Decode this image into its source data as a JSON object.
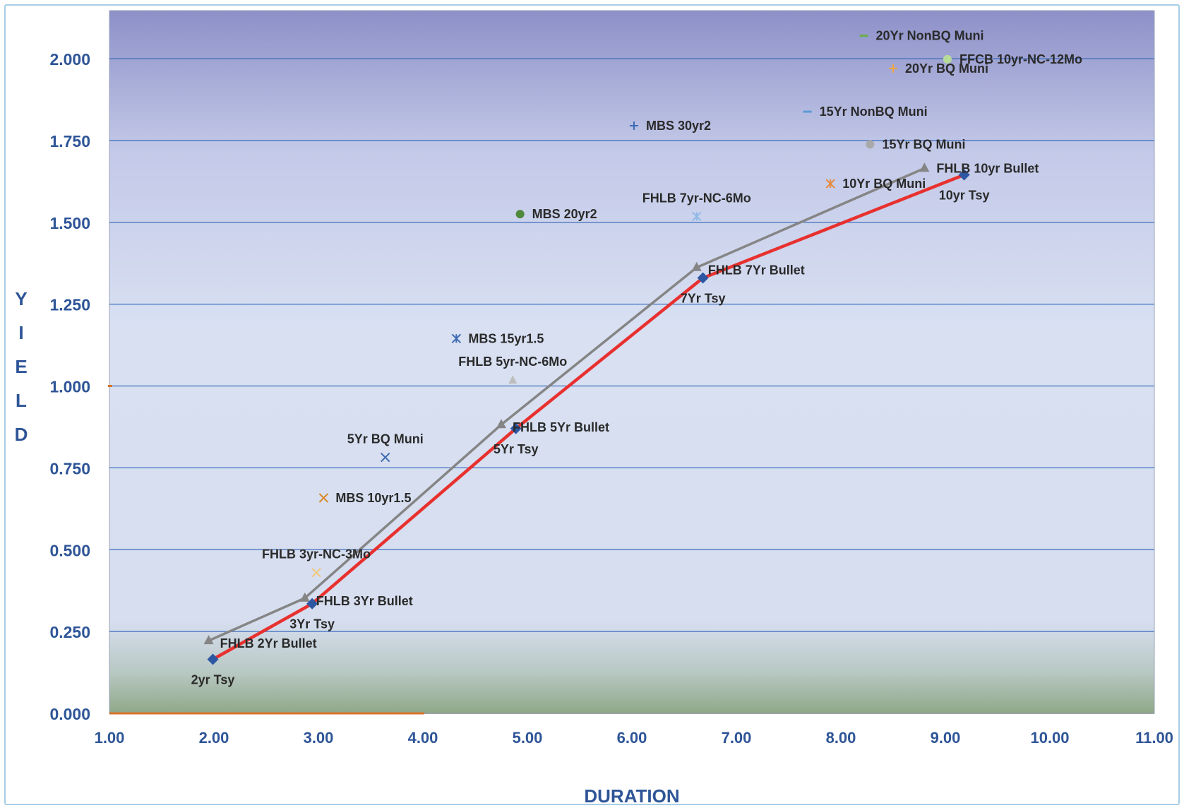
{
  "chart_data": {
    "type": "scatter",
    "title": "",
    "xlabel": "DURATION",
    "ylabel": "YIELD",
    "xlim": [
      1.0,
      11.0
    ],
    "ylim": [
      0.0,
      2.15
    ],
    "x_ticks": [
      "1.00",
      "2.00",
      "3.00",
      "4.00",
      "5.00",
      "6.00",
      "7.00",
      "8.00",
      "9.00",
      "10.00",
      "11.00"
    ],
    "y_ticks": [
      "0.000",
      "0.250",
      "0.500",
      "0.750",
      "1.000",
      "1.250",
      "1.500",
      "1.750",
      "2.000"
    ],
    "grid": true,
    "colors": {
      "treasury_line": "#e8312f",
      "treasury_marker": "#2e57a3",
      "bullet_line": "#858585",
      "axis_text": "#2e5597",
      "gridline": "#3f6fbd",
      "bg_top": "#8f92c9",
      "bg_mid": "#d8e0f2",
      "bg_bottom": "#8fa888"
    },
    "series": [
      {
        "name": "Tsy",
        "style": "line-diamond",
        "points": [
          {
            "x": 1.99,
            "y": 0.165,
            "label": "2yr Tsy",
            "lpos": "below"
          },
          {
            "x": 2.94,
            "y": 0.335,
            "label": "3Yr Tsy",
            "lpos": "below"
          },
          {
            "x": 4.89,
            "y": 0.87,
            "label": "5Yr Tsy",
            "lpos": "below"
          },
          {
            "x": 6.68,
            "y": 1.33,
            "label": "7Yr Tsy",
            "lpos": "below"
          },
          {
            "x": 9.18,
            "y": 1.645,
            "label": "10yr Tsy",
            "lpos": "below"
          }
        ]
      },
      {
        "name": "FHLB Bullet",
        "style": "line-triangle",
        "points": [
          {
            "x": 1.95,
            "y": 0.222,
            "label": "FHLB 2Yr Bullet",
            "lpos": "right-below"
          },
          {
            "x": 2.87,
            "y": 0.352,
            "label": "FHLB 3Yr Bullet",
            "lpos": "right-below"
          },
          {
            "x": 4.75,
            "y": 0.882,
            "label": "FHLB 5Yr Bullet",
            "lpos": "right-below"
          },
          {
            "x": 6.62,
            "y": 1.362,
            "label": "FHLB 7Yr Bullet",
            "lpos": "right-below"
          },
          {
            "x": 8.8,
            "y": 1.665,
            "label": "FHLB 10yr Bullet",
            "lpos": "right"
          }
        ]
      }
    ],
    "points": [
      {
        "x": 2.98,
        "y": 0.43,
        "label": "FHLB 3yr-NC-3Mo",
        "marker": "x",
        "color": "#f2c77b",
        "lpos": "above"
      },
      {
        "x": 3.05,
        "y": 0.658,
        "label": "MBS 10yr1.5",
        "marker": "x",
        "color": "#d9892a",
        "lpos": "right"
      },
      {
        "x": 3.64,
        "y": 0.782,
        "label": "5Yr BQ Muni",
        "marker": "x",
        "color": "#3e6bb4",
        "lpos": "above"
      },
      {
        "x": 4.32,
        "y": 1.145,
        "label": "MBS 15yr1.5",
        "marker": "star",
        "color": "#3e6bb4",
        "lpos": "right"
      },
      {
        "x": 4.86,
        "y": 1.018,
        "label": "FHLB 5yr-NC-6Mo",
        "marker": "triangle",
        "color": "#bdbdbd",
        "lpos": "above"
      },
      {
        "x": 4.93,
        "y": 1.525,
        "label": "MBS 20yr2",
        "marker": "circle",
        "color": "#4f8a3a",
        "lpos": "right"
      },
      {
        "x": 6.02,
        "y": 1.795,
        "label": "MBS 30yr2",
        "marker": "plus",
        "color": "#3e6bb4",
        "lpos": "right"
      },
      {
        "x": 6.62,
        "y": 1.518,
        "label": "FHLB 7yr-NC-6Mo",
        "marker": "star",
        "color": "#8fb8e6",
        "lpos": "above"
      },
      {
        "x": 7.68,
        "y": 1.838,
        "label": "15Yr NonBQ Muni",
        "marker": "dash",
        "color": "#5a9ad6",
        "lpos": "right"
      },
      {
        "x": 7.9,
        "y": 1.618,
        "label": "10Yr BQ Muni",
        "marker": "star",
        "color": "#e88a3c",
        "lpos": "right"
      },
      {
        "x": 8.22,
        "y": 2.07,
        "label": "20Yr NonBQ Muni",
        "marker": "dash",
        "color": "#6aae4a",
        "lpos": "right"
      },
      {
        "x": 8.28,
        "y": 1.738,
        "label": "15Yr BQ Muni",
        "marker": "circle",
        "color": "#a9a9a9",
        "lpos": "right"
      },
      {
        "x": 8.5,
        "y": 1.97,
        "label": "20Yr BQ Muni",
        "marker": "plus",
        "color": "#f2a640",
        "lpos": "right"
      },
      {
        "x": 9.02,
        "y": 1.998,
        "label": "FFCB 10yr-NC-12Mo",
        "marker": "circle",
        "color": "#b7dc9a",
        "lpos": "right"
      }
    ]
  }
}
